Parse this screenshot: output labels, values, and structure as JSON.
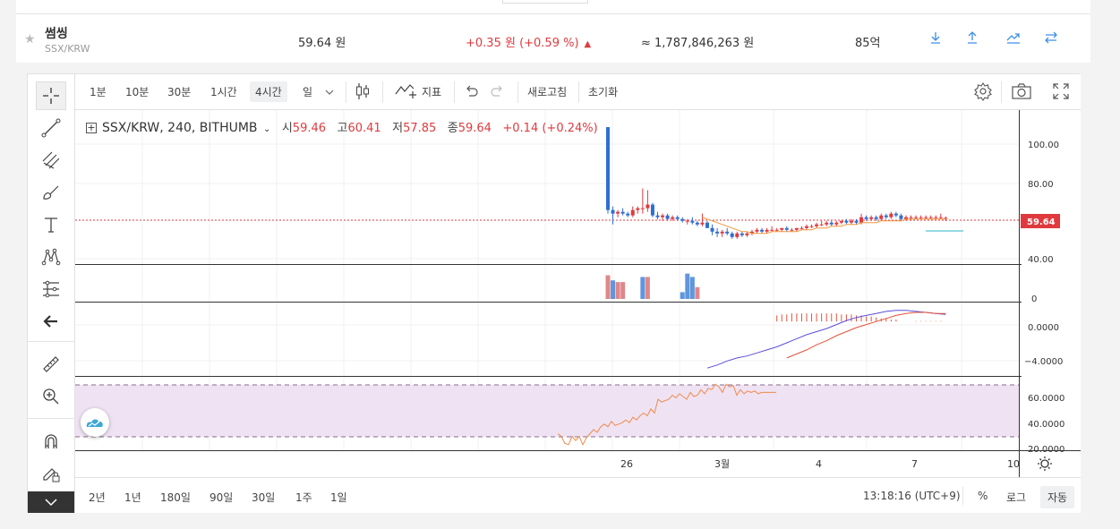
{
  "ticker": {
    "name": "썸씽",
    "pair": "SSX/KRW",
    "price": "59.64 원",
    "change": "+0.35 원 (+0.59 %)",
    "change_direction": "up",
    "volume": "≈ 1,787,846,263 원",
    "market_cap": "85억",
    "actions": [
      "download-icon",
      "upload-icon",
      "trend-icon",
      "swap-icon"
    ]
  },
  "toolbar": {
    "intervals": [
      "1분",
      "10분",
      "30분",
      "1시간",
      "4시간",
      "일"
    ],
    "selected_interval": "4시간",
    "indicators_label": "지표",
    "refresh_label": "새로고침",
    "reset_label": "초기화"
  },
  "left_tools": [
    "crosshair-icon",
    "trend-line-icon",
    "pitchfork-icon",
    "brush-icon",
    "text-icon",
    "pattern-icon",
    "fib-icon",
    "back-arrow-icon",
    "ruler-icon",
    "zoom-in-icon",
    "magnet-icon",
    "lock-draw-icon"
  ],
  "legend": {
    "symbol": "SSX/KRW, 240, BITHUMB",
    "open_label": "시",
    "open": "59.46",
    "high_label": "고",
    "high": "60.41",
    "low_label": "저",
    "low": "57.85",
    "close_label": "종",
    "close": "59.64",
    "change": "+0.14 (+0.24%)"
  },
  "price_axis": {
    "ticks": [
      "100.00",
      "80.00",
      "40.00"
    ],
    "current": "59.64",
    "volume_tick": "0",
    "macd_ticks": [
      "0.0000",
      "−4.0000"
    ],
    "rsi_ticks": [
      "60.0000",
      "40.0000",
      "20.0000"
    ]
  },
  "time_axis": [
    "26",
    "3월",
    "4",
    "7",
    "10"
  ],
  "bottom": {
    "ranges": [
      "2년",
      "1년",
      "180일",
      "90일",
      "30일",
      "1주",
      "1일"
    ],
    "clock": "13:18:16 (UTC+9)",
    "percent_label": "%",
    "log_label": "로그",
    "auto_label": "자동"
  },
  "colors": {
    "up": "#e03a3e",
    "down": "#2f6fd1",
    "ma": "#f0963c",
    "macd": "#5a4ed8",
    "signal": "#e0533a",
    "rsi": "#f08a4b",
    "rsi_band": "#efe3f3"
  },
  "chart_data": {
    "type": "candlestick",
    "price_ylim": [
      35,
      112
    ],
    "candles": [
      [
        110,
        110,
        62,
        64
      ],
      [
        64,
        66,
        56,
        62
      ],
      [
        62,
        64,
        60,
        63
      ],
      [
        63,
        65,
        61,
        62
      ],
      [
        62,
        63,
        60,
        61
      ],
      [
        61,
        66,
        60,
        64
      ],
      [
        64,
        66,
        62,
        65
      ],
      [
        65,
        76,
        62,
        65
      ],
      [
        65,
        75,
        63,
        67
      ],
      [
        67,
        68,
        60,
        61
      ],
      [
        61,
        63,
        59,
        60
      ],
      [
        60,
        62,
        58,
        61
      ],
      [
        61,
        62,
        58,
        59
      ],
      [
        59,
        61,
        58,
        60
      ],
      [
        60,
        61,
        58,
        59
      ],
      [
        59,
        60,
        57,
        58
      ],
      [
        58,
        59,
        56,
        58
      ],
      [
        58,
        60,
        56,
        57
      ],
      [
        57,
        58,
        55,
        56
      ],
      [
        56,
        62,
        55,
        57
      ],
      [
        57,
        58,
        54,
        54
      ],
      [
        54,
        56,
        50,
        52
      ],
      [
        52,
        54,
        49,
        51
      ],
      [
        51,
        53,
        49,
        52
      ],
      [
        52,
        54,
        50,
        51
      ],
      [
        51,
        52,
        48,
        49
      ],
      [
        49,
        52,
        48,
        51
      ],
      [
        51,
        52,
        49,
        50
      ],
      [
        50,
        52,
        49,
        51
      ],
      [
        51,
        53,
        50,
        52
      ],
      [
        52,
        54,
        51,
        53
      ],
      [
        53,
        54,
        51,
        52
      ],
      [
        52,
        54,
        51,
        53
      ],
      [
        53,
        55,
        52,
        53
      ],
      [
        53,
        54,
        52,
        53
      ],
      [
        53,
        54,
        52,
        54
      ],
      [
        54,
        55,
        52,
        53
      ],
      [
        53,
        54,
        52,
        53
      ],
      [
        53,
        54,
        52,
        54
      ],
      [
        54,
        55,
        53,
        54
      ],
      [
        54,
        56,
        53,
        55
      ],
      [
        55,
        56,
        54,
        55
      ],
      [
        55,
        57,
        54,
        56
      ],
      [
        56,
        58,
        55,
        56
      ],
      [
        56,
        58,
        55,
        57
      ],
      [
        57,
        58,
        55,
        56
      ],
      [
        56,
        58,
        55,
        57
      ],
      [
        57,
        58,
        56,
        58
      ],
      [
        58,
        59,
        56,
        57
      ],
      [
        57,
        59,
        56,
        58
      ],
      [
        58,
        59,
        56,
        57
      ],
      [
        57,
        62,
        56,
        60
      ],
      [
        60,
        61,
        58,
        59
      ],
      [
        59,
        61,
        58,
        60
      ],
      [
        60,
        61,
        58,
        59
      ],
      [
        59,
        62,
        58,
        61
      ],
      [
        61,
        62,
        59,
        60
      ],
      [
        60,
        63,
        59,
        62
      ],
      [
        62,
        63,
        60,
        61
      ],
      [
        61,
        62,
        58,
        59
      ],
      [
        59,
        61,
        58,
        60
      ],
      [
        60,
        61,
        58,
        60
      ],
      [
        60,
        61,
        59,
        60
      ],
      [
        60,
        61,
        59,
        60
      ],
      [
        60,
        61,
        59,
        60
      ],
      [
        60,
        61,
        59,
        60
      ],
      [
        60,
        61,
        59,
        60
      ],
      [
        60,
        62,
        59,
        60
      ],
      [
        59.46,
        60.41,
        57.85,
        59.64
      ]
    ],
    "ma": [
      null,
      null,
      null,
      null,
      null,
      null,
      null,
      null,
      null,
      null,
      null,
      null,
      null,
      null,
      null,
      null,
      null,
      null,
      null,
      60,
      59,
      58,
      57,
      56,
      55,
      54,
      53,
      52,
      52,
      51,
      51,
      51,
      51,
      52,
      52,
      52,
      52,
      52,
      52,
      53,
      53,
      53,
      54,
      54,
      54,
      55,
      55,
      55,
      56,
      56,
      56,
      57,
      57,
      57,
      57,
      58,
      58,
      58,
      58,
      58,
      59,
      59,
      59,
      59,
      59,
      59,
      59,
      59,
      59
    ],
    "volume": [
      [
        0,
        14,
        "up"
      ],
      [
        1,
        11,
        "down"
      ],
      [
        2,
        10,
        "up"
      ],
      [
        3,
        10,
        "up"
      ],
      [
        7,
        13,
        "down"
      ],
      [
        8,
        13,
        "up"
      ],
      [
        15,
        4,
        "down"
      ],
      [
        16,
        15,
        "down"
      ],
      [
        17,
        13,
        "down"
      ],
      [
        18,
        7,
        "up"
      ]
    ],
    "volume_ylim": [
      0,
      18
    ],
    "macd": [
      [
        20,
        -4.6
      ],
      [
        22,
        -4.3
      ],
      [
        24,
        -3.9
      ],
      [
        26,
        -3.6
      ],
      [
        28,
        -3.4
      ],
      [
        30,
        -3.1
      ],
      [
        32,
        -2.8
      ],
      [
        34,
        -2.5
      ],
      [
        36,
        -2.1
      ],
      [
        38,
        -1.7
      ],
      [
        40,
        -1.3
      ],
      [
        42,
        -1.0
      ],
      [
        44,
        -0.7
      ],
      [
        46,
        -0.3
      ],
      [
        48,
        0.1
      ],
      [
        50,
        0.4
      ],
      [
        52,
        0.6
      ],
      [
        54,
        0.8
      ],
      [
        56,
        1.0
      ],
      [
        58,
        1.1
      ],
      [
        60,
        1.1
      ],
      [
        62,
        1.0
      ],
      [
        64,
        0.9
      ],
      [
        66,
        0.8
      ],
      [
        68,
        0.7
      ]
    ],
    "signal": [
      [
        36,
        -3.6
      ],
      [
        38,
        -3.2
      ],
      [
        40,
        -2.8
      ],
      [
        42,
        -2.3
      ],
      [
        44,
        -1.9
      ],
      [
        46,
        -1.4
      ],
      [
        48,
        -1.0
      ],
      [
        50,
        -0.6
      ],
      [
        52,
        -0.3
      ],
      [
        54,
        0.0
      ],
      [
        56,
        0.3
      ],
      [
        58,
        0.6
      ],
      [
        60,
        0.8
      ],
      [
        62,
        0.9
      ],
      [
        64,
        0.9
      ],
      [
        66,
        0.8
      ],
      [
        68,
        0.8
      ]
    ],
    "histogram": [
      [
        34,
        0.6
      ],
      [
        35,
        0.7
      ],
      [
        36,
        0.7
      ],
      [
        37,
        0.8
      ],
      [
        38,
        0.8
      ],
      [
        39,
        0.8
      ],
      [
        40,
        0.8
      ],
      [
        41,
        0.8
      ],
      [
        42,
        0.8
      ],
      [
        43,
        0.8
      ],
      [
        44,
        0.8
      ],
      [
        45,
        0.8
      ],
      [
        46,
        0.8
      ],
      [
        47,
        0.7
      ],
      [
        48,
        0.7
      ],
      [
        49,
        0.7
      ],
      [
        50,
        0.6
      ],
      [
        51,
        0.6
      ],
      [
        52,
        0.5
      ],
      [
        53,
        0.5
      ],
      [
        54,
        0.4
      ],
      [
        55,
        0.3
      ],
      [
        56,
        0.3
      ],
      [
        57,
        0.2
      ],
      [
        58,
        0.2
      ],
      [
        62,
        0.05
      ],
      [
        63,
        0.05
      ],
      [
        64,
        0.05
      ],
      [
        65,
        0.05
      ],
      [
        66,
        0.05
      ],
      [
        67,
        0.05
      ]
    ],
    "macd_ylim": [
      -5.2,
      1.7
    ],
    "rsi": [
      [
        26,
        30
      ],
      [
        27,
        28
      ],
      [
        28,
        23
      ],
      [
        29,
        22
      ],
      [
        30,
        28
      ],
      [
        31,
        25
      ],
      [
        32,
        28
      ],
      [
        33,
        22
      ],
      [
        34,
        27
      ],
      [
        35,
        30
      ],
      [
        36,
        33
      ],
      [
        37,
        31
      ],
      [
        38,
        35
      ],
      [
        39,
        37
      ],
      [
        40,
        35
      ],
      [
        41,
        39
      ],
      [
        42,
        36
      ],
      [
        43,
        37
      ],
      [
        44,
        38
      ],
      [
        45,
        40
      ],
      [
        46,
        38
      ],
      [
        47,
        42
      ],
      [
        48,
        40
      ],
      [
        49,
        43
      ],
      [
        50,
        45
      ],
      [
        51,
        43
      ],
      [
        52,
        48
      ],
      [
        53,
        45
      ],
      [
        54,
        55
      ],
      [
        55,
        53
      ],
      [
        56,
        54
      ],
      [
        57,
        55
      ],
      [
        58,
        58
      ],
      [
        59,
        56
      ],
      [
        60,
        59
      ],
      [
        61,
        57
      ],
      [
        62,
        55
      ],
      [
        63,
        60
      ],
      [
        64,
        57
      ],
      [
        65,
        58
      ],
      [
        66,
        62
      ],
      [
        67,
        59
      ],
      [
        68,
        63
      ],
      [
        69,
        62
      ],
      [
        70,
        66
      ],
      [
        71,
        64
      ],
      [
        72,
        60
      ],
      [
        73,
        66
      ],
      [
        74,
        64
      ],
      [
        75,
        65
      ],
      [
        76,
        58
      ],
      [
        77,
        62
      ],
      [
        78,
        59
      ],
      [
        79,
        61
      ],
      [
        80,
        60
      ],
      [
        81,
        61
      ],
      [
        82,
        59
      ],
      [
        83,
        60
      ],
      [
        84,
        60
      ],
      [
        85,
        60
      ],
      [
        86,
        60
      ],
      [
        87,
        60
      ]
    ],
    "rsi_ylim": [
      18,
      70
    ],
    "rsi_band": [
      30,
      70
    ]
  }
}
